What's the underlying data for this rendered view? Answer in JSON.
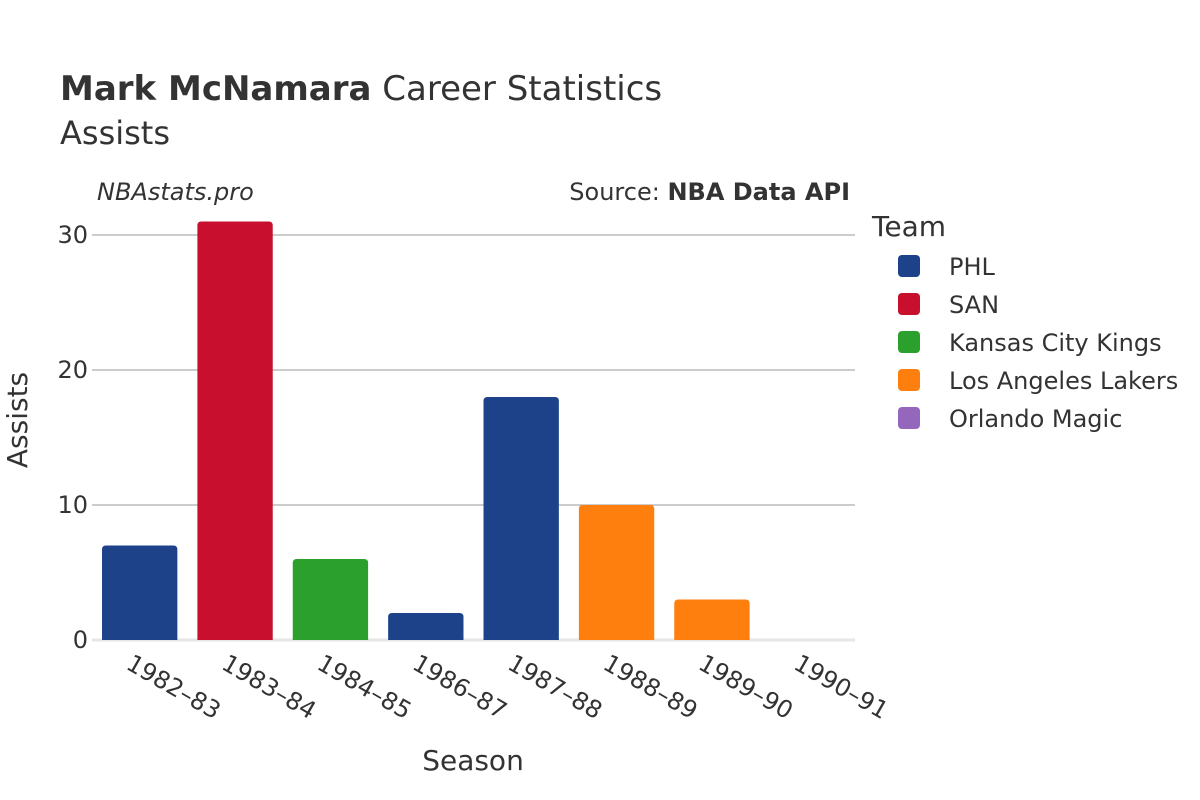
{
  "header": {
    "player_name": "Mark McNamara",
    "title_suffix": " Career Statistics",
    "subtitle": "Assists"
  },
  "credits": {
    "site": "NBAstats.pro",
    "source_label": "Source: ",
    "source_name": "NBA Data API"
  },
  "legend": {
    "title": "Team",
    "position": "right",
    "items": [
      {
        "name": "PHL",
        "color": "#1d428a"
      },
      {
        "name": "SAN",
        "color": "#c8102e"
      },
      {
        "name": "Kansas City Kings",
        "color": "#2ca02c"
      },
      {
        "name": "Los Angeles Lakers",
        "color": "#ff7f0e"
      },
      {
        "name": "Orlando Magic",
        "color": "#9467bd"
      }
    ]
  },
  "chart_data": {
    "type": "bar",
    "title": "Mark McNamara Career Statistics",
    "subtitle": "Assists",
    "xlabel": "Season",
    "ylabel": "Assists",
    "categories": [
      "1982–83",
      "1983–84",
      "1984–85",
      "1986–87",
      "1987–88",
      "1988–89",
      "1989–90",
      "1990–91"
    ],
    "values": [
      7,
      31,
      6,
      2,
      18,
      10,
      3,
      0
    ],
    "teams": [
      "PHL",
      "SAN",
      "Kansas City Kings",
      "PHL",
      "PHL",
      "Los Angeles Lakers",
      "Los Angeles Lakers",
      "Orlando Magic"
    ],
    "ylim": [
      0,
      32
    ],
    "yticks": [
      0,
      10,
      20,
      30
    ],
    "grid": true,
    "legend": "right"
  }
}
